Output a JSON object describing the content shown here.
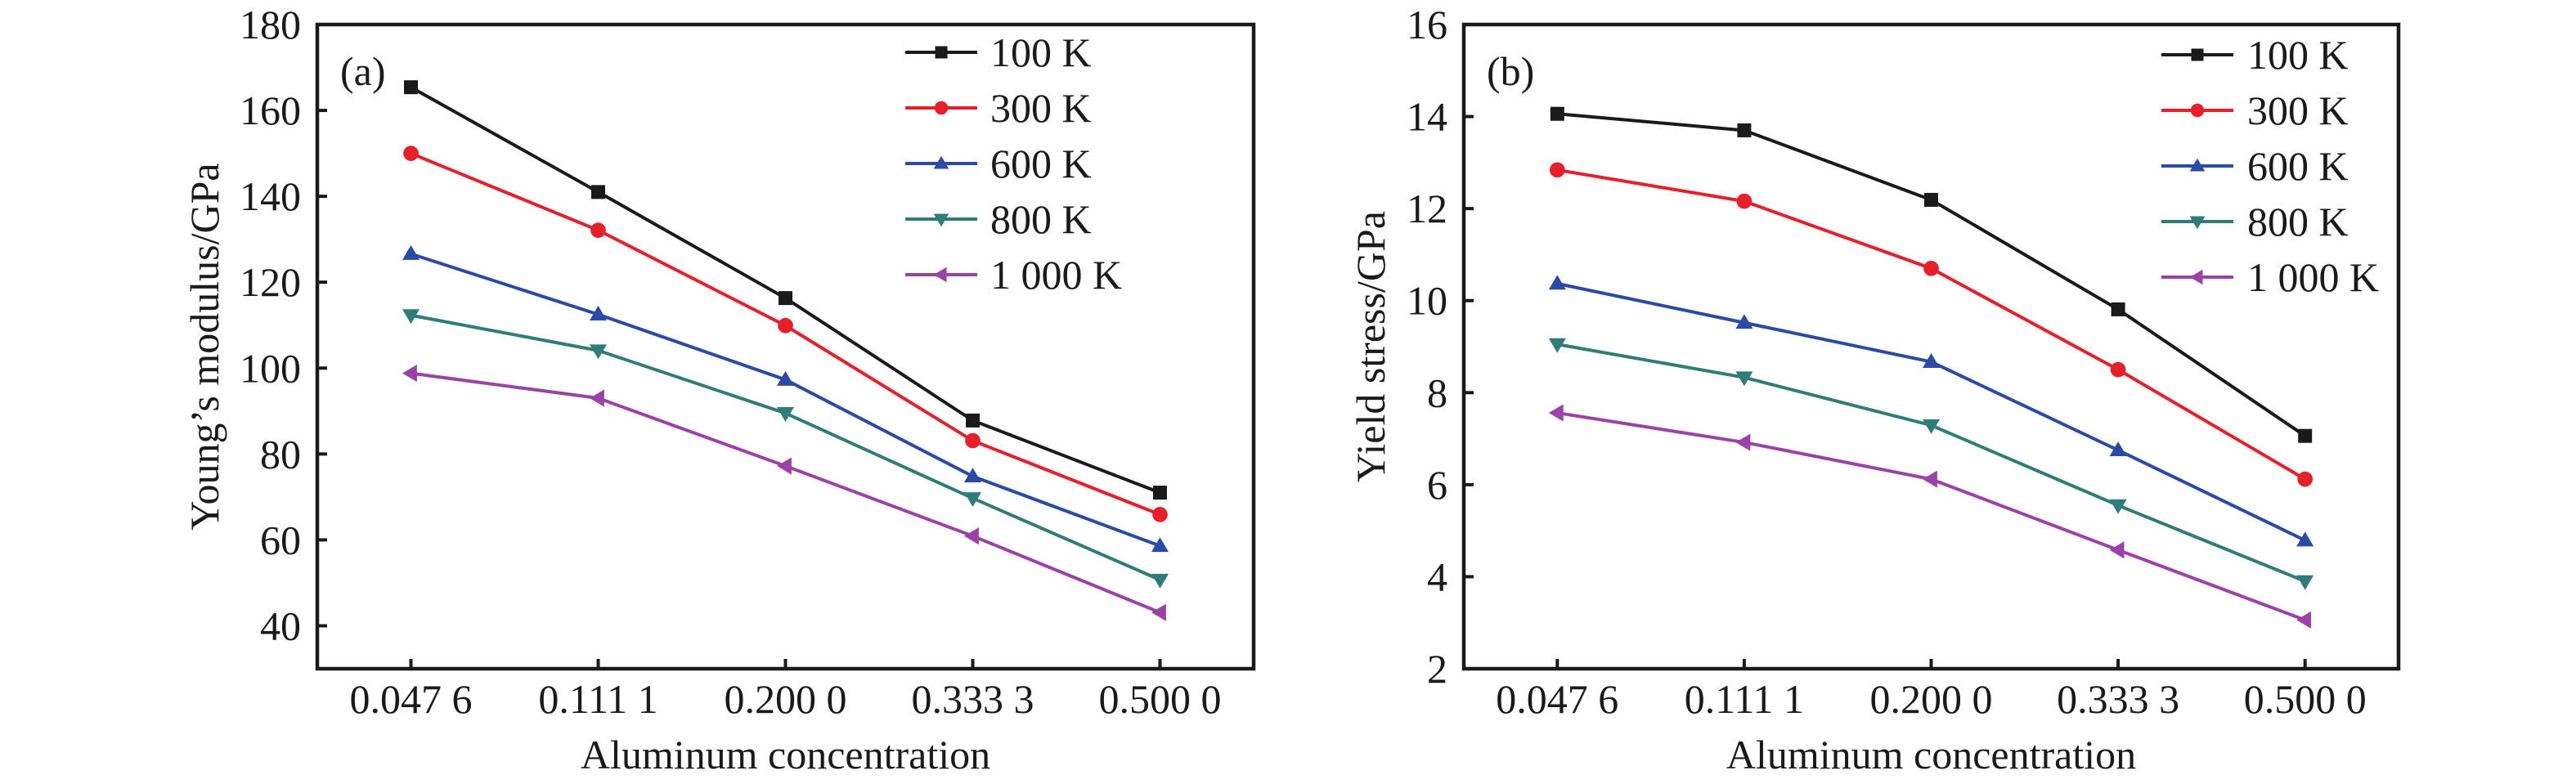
{
  "chart_data": [
    {
      "type": "line",
      "panel_label": "(a)",
      "title": "",
      "xlabel": "Aluminum concentration",
      "ylabel": "Young’s modulus/GPa",
      "categories": [
        "0.047 6",
        "0.111 1",
        "0.200 0",
        "0.333 3",
        "0.500 0"
      ],
      "x": [
        0.0476,
        0.1111,
        0.2,
        0.3333,
        0.5
      ],
      "ylim": [
        30,
        180
      ],
      "yticks": [
        40,
        60,
        80,
        100,
        120,
        140,
        160,
        180
      ],
      "ytick_labels": [
        "40",
        "60",
        "80",
        "100",
        "120",
        "140",
        "160",
        "180"
      ],
      "grid": false,
      "legend_position": "top-right",
      "series": [
        {
          "name": "100 K",
          "color": "#1a1a1a",
          "marker": "square",
          "values": [
            165.4,
            141.0,
            116.3,
            87.8,
            71.0
          ]
        },
        {
          "name": "300 K",
          "color": "#e5202b",
          "marker": "circle",
          "values": [
            150.0,
            132.1,
            109.9,
            83.1,
            65.9
          ]
        },
        {
          "name": "600 K",
          "color": "#2b4aa6",
          "marker": "triangle-up",
          "values": [
            126.6,
            112.5,
            97.3,
            74.8,
            58.6
          ]
        },
        {
          "name": "800 K",
          "color": "#2f7c78",
          "marker": "triangle-down",
          "values": [
            112.3,
            104.1,
            89.5,
            69.7,
            50.7
          ]
        },
        {
          "name": "1 000 K",
          "color": "#9a42a6",
          "marker": "triangle-left",
          "values": [
            98.8,
            93.0,
            77.2,
            60.9,
            43.1
          ]
        }
      ]
    },
    {
      "type": "line",
      "panel_label": "(b)",
      "title": "",
      "xlabel": "Aluminum concentration",
      "ylabel": "Yield stress/GPa",
      "categories": [
        "0.047 6",
        "0.111 1",
        "0.200 0",
        "0.333 3",
        "0.500 0"
      ],
      "x": [
        0.0476,
        0.1111,
        0.2,
        0.3333,
        0.5
      ],
      "ylim": [
        2,
        16
      ],
      "yticks": [
        2,
        4,
        6,
        8,
        10,
        12,
        14,
        16
      ],
      "ytick_labels": [
        "2",
        "4",
        "6",
        "8",
        "10",
        "12",
        "14",
        "16"
      ],
      "grid": false,
      "legend_position": "top-right",
      "series": [
        {
          "name": "100 K",
          "color": "#1a1a1a",
          "marker": "square",
          "values": [
            14.06,
            13.7,
            12.19,
            9.81,
            7.06
          ]
        },
        {
          "name": "300 K",
          "color": "#e5202b",
          "marker": "circle",
          "values": [
            12.84,
            12.16,
            10.7,
            8.5,
            6.12
          ]
        },
        {
          "name": "600 K",
          "color": "#2b4aa6",
          "marker": "triangle-up",
          "values": [
            10.37,
            9.52,
            8.67,
            6.75,
            4.79
          ]
        },
        {
          "name": "800 K",
          "color": "#2f7c78",
          "marker": "triangle-down",
          "values": [
            9.05,
            8.33,
            7.29,
            5.55,
            3.9
          ]
        },
        {
          "name": "1 000 K",
          "color": "#9a42a6",
          "marker": "triangle-left",
          "values": [
            7.56,
            6.92,
            6.12,
            4.58,
            3.06
          ]
        }
      ]
    }
  ]
}
